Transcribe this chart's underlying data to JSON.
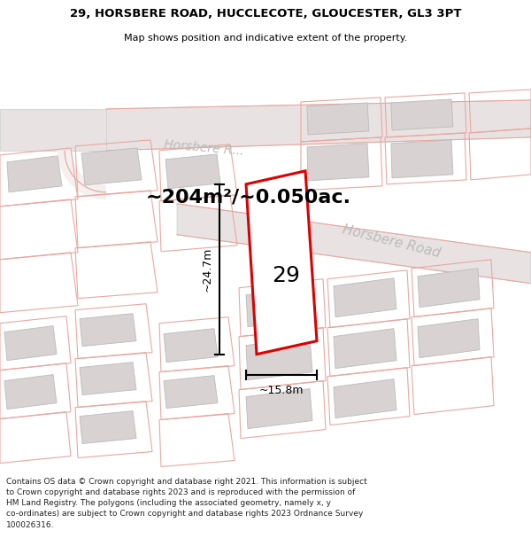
{
  "title_line1": "29, HORSBERE ROAD, HUCCLECOTE, GLOUCESTER, GL3 3PT",
  "title_line2": "Map shows position and indicative extent of the property.",
  "area_text": "~204m²/~0.050ac.",
  "number_label": "29",
  "dim_height": "~24.7m",
  "dim_width": "~15.8m",
  "road_label1": "Horsbere R...",
  "road_label2": "Horsbere Road",
  "footer_text": "Contains OS data © Crown copyright and database right 2021. This information is subject to Crown copyright and database rights 2023 and is reproduced with the permission of HM Land Registry. The polygons (including the associated geometry, namely x, y co-ordinates) are subject to Crown copyright and database rights 2023 Ordnance Survey 100026316.",
  "bg_color": "#ffffff",
  "map_bg": "#f5f0f0",
  "road_fill": "#e8e2e2",
  "road_stroke": "#cccccc",
  "plot_stroke": "#dd0000",
  "plot_fill": "#ffffff",
  "building_fill": "#d8d2d2",
  "building_stroke": "#bbbbbb",
  "neighbor_stroke": "#e8a8a0",
  "dim_color": "#000000",
  "text_color": "#000000",
  "footer_color": "#222222",
  "road_label_color": "#bbbbbb"
}
